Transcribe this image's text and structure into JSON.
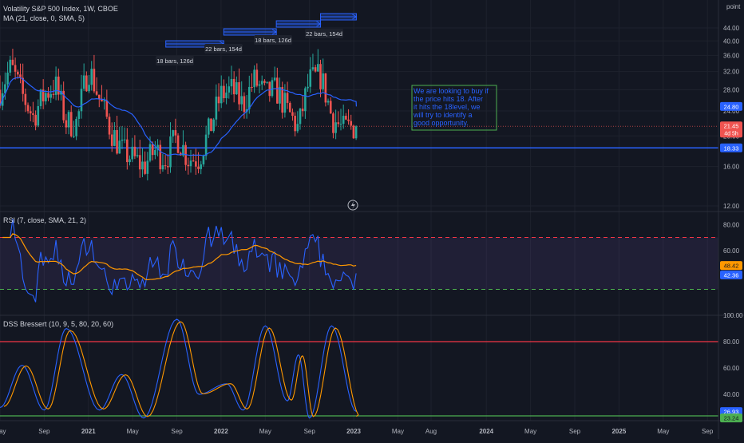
{
  "header": {
    "symbol_title": "Volatility S&P 500 Index, 1W, CBOE",
    "ma_label": "MA (21, close, 0, SMA, 5)",
    "rsi_label": "RSI (7, close, SMA, 21, 2)",
    "dss_label": "DSS Bressert (10, 9, 5, 80, 20, 60)",
    "axis_title": "point"
  },
  "colors": {
    "background": "#131722",
    "grid": "#1e222d",
    "up": "#26a69a",
    "down": "#ef5350",
    "ma_line": "#2962ff",
    "level_line": "#2962ff",
    "rsi_line": "#2962ff",
    "rsi_signal": "#ff9800",
    "rsi_band": "#7e57c2",
    "rsi_upper": "#f23645",
    "rsi_lower": "#4caf50",
    "dss_k": "#2962ff",
    "dss_d": "#ff9800",
    "dss_upper": "#f23645",
    "dss_lower": "#4caf50",
    "note_text": "#2962ff",
    "note_border": "#4caf50"
  },
  "annotation": {
    "note_text": "We are looking to buy if the price hits 18. After it hits the 18level, we will try to identify a good opportunity.",
    "ranges": [
      "18 bars, 126d",
      "22 bars, 154d",
      "18 bars, 126d",
      "22 bars, 154d"
    ]
  },
  "price_badges": {
    "ma": "24.80",
    "last": "21.45",
    "countdown": "4d 5h",
    "level": "18.33"
  },
  "rsi_badges": {
    "signal": "48.42",
    "rsi": "42.36"
  },
  "dss_badges": {
    "k": "26.93",
    "d": "23.24"
  },
  "x_axis": {
    "labels": [
      "May",
      "Sep",
      "2021",
      "May",
      "Sep",
      "2022",
      "May",
      "Sep",
      "2023",
      "May",
      "Aug",
      "2024",
      "May",
      "Sep",
      "2025",
      "May",
      "Sep"
    ]
  },
  "chart_data": [
    {
      "type": "candlestick",
      "title": "Volatility S&P 500 Index, 1W, CBOE",
      "ylabel": "point",
      "y_scale": "log",
      "ylim": [
        12,
        48
      ],
      "y_ticks": [
        "12.00",
        "16.00",
        "20.00",
        "24.00",
        "28.00",
        "32.00",
        "36.00",
        "40.00",
        "44.00"
      ],
      "x_range": [
        "2020-05",
        "2025-09"
      ],
      "series": [
        {
          "name": "MA (21, close, 0, SMA, 5)",
          "values": "21-period simple moving average of close"
        }
      ],
      "horizontal_line": 18.33,
      "last_close": 21.45,
      "last_ma": 24.8,
      "close_path": [
        [
          "2020-05",
          28
        ],
        [
          "2020-06",
          33
        ],
        [
          "2020-07",
          27
        ],
        [
          "2020-08",
          23
        ],
        [
          "2020-09",
          27
        ],
        [
          "2020-10",
          29
        ],
        [
          "2020-11",
          22
        ],
        [
          "2020-12",
          22
        ],
        [
          "2021-01",
          33
        ],
        [
          "2021-02",
          26
        ],
        [
          "2021-03",
          21
        ],
        [
          "2021-04",
          18
        ],
        [
          "2021-05",
          17
        ],
        [
          "2021-06",
          16
        ],
        [
          "2021-07",
          18
        ],
        [
          "2021-08",
          17
        ],
        [
          "2021-09",
          20
        ],
        [
          "2021-10",
          17
        ],
        [
          "2021-11",
          17
        ],
        [
          "2021-12",
          21
        ],
        [
          "2022-01",
          27
        ],
        [
          "2022-02",
          28
        ],
        [
          "2022-03",
          25
        ],
        [
          "2022-04",
          30
        ],
        [
          "2022-05",
          27
        ],
        [
          "2022-06",
          28
        ],
        [
          "2022-07",
          24
        ],
        [
          "2022-08",
          21
        ],
        [
          "2022-09",
          30
        ],
        [
          "2022-10",
          31
        ],
        [
          "2022-11",
          23
        ],
        [
          "2022-12",
          21
        ],
        [
          "2023-01",
          21.45
        ]
      ]
    },
    {
      "type": "line",
      "title": "RSI (7, close, SMA, 21, 2)",
      "ylim": [
        10,
        90
      ],
      "y_ticks": [
        "80.00",
        "60.00"
      ],
      "band": [
        30,
        70
      ],
      "series": [
        {
          "name": "RSI",
          "last": 42.36
        },
        {
          "name": "SMA",
          "last": 48.42
        }
      ]
    },
    {
      "type": "line",
      "title": "DSS Bressert (10, 9, 5, 80, 20, 60)",
      "ylim": [
        20,
        100
      ],
      "y_ticks": [
        "100.00",
        "80.00",
        "60.00",
        "40.00"
      ],
      "levels": [
        80,
        20
      ],
      "series": [
        {
          "name": "DSS",
          "last": 26.93
        },
        {
          "name": "Signal",
          "last": 23.24
        }
      ]
    }
  ]
}
